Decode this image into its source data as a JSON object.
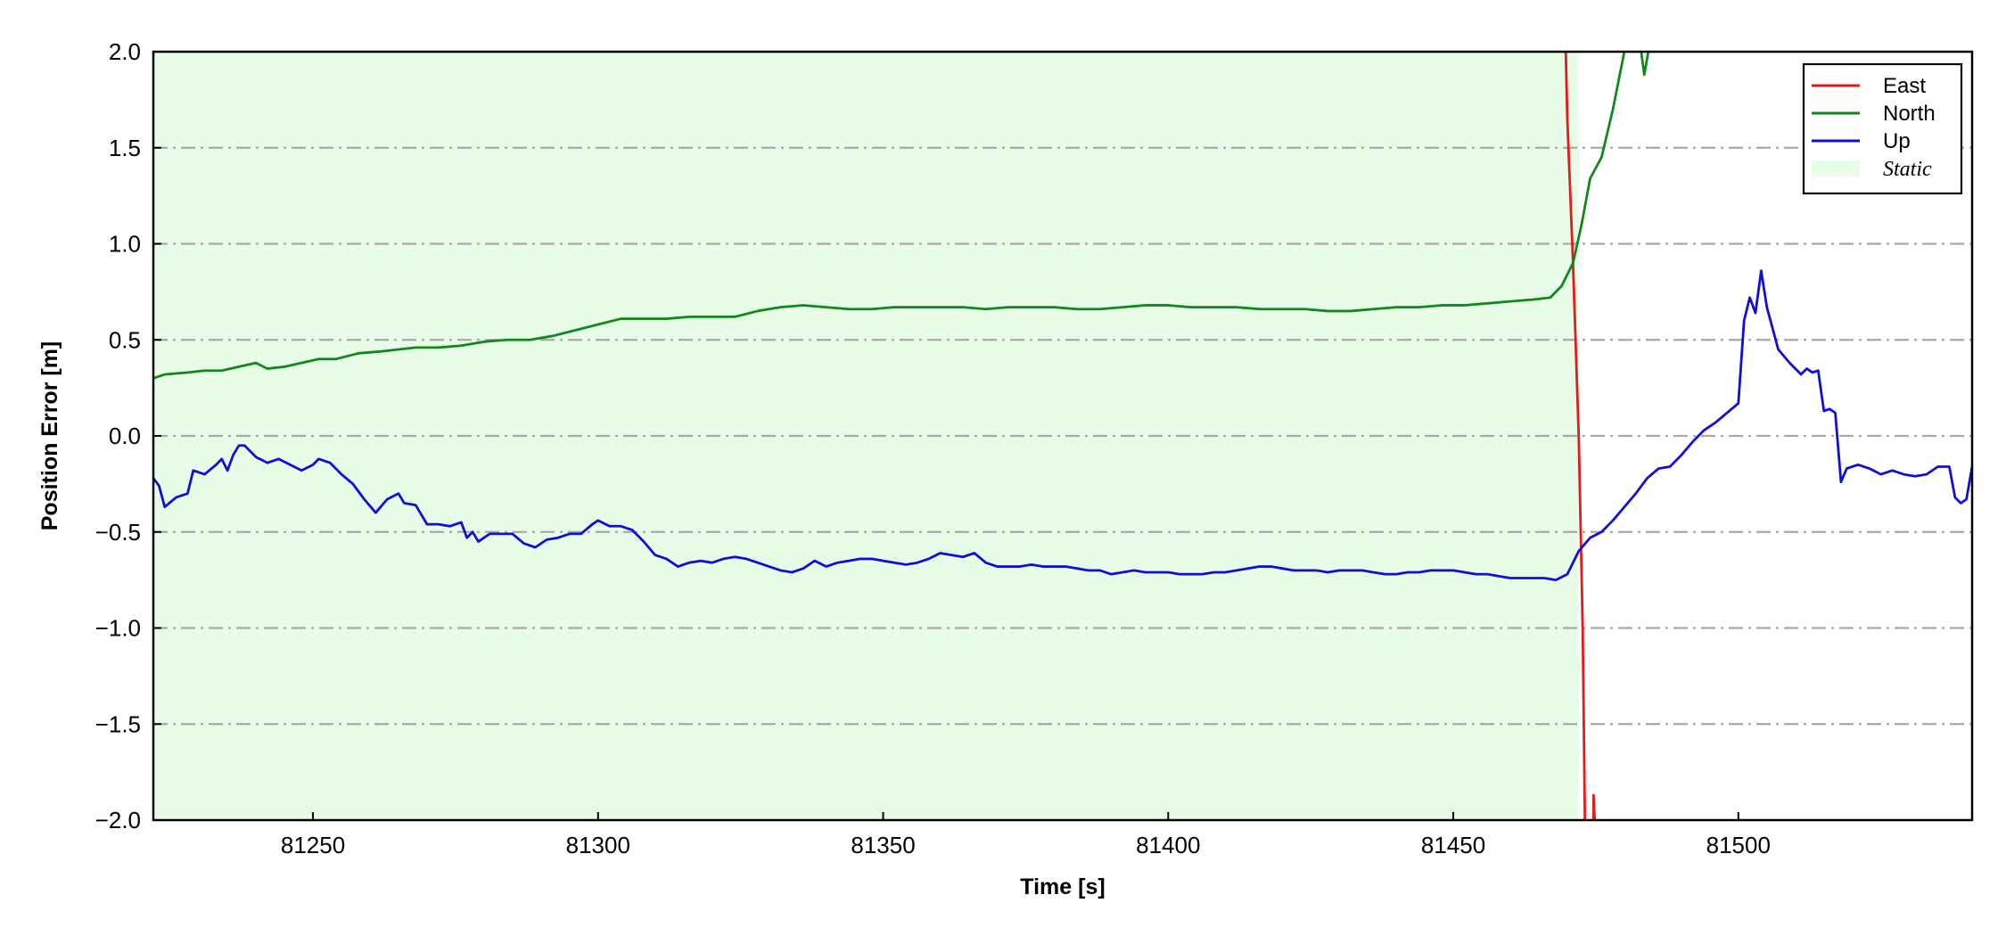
{
  "chart_data": {
    "type": "line",
    "xlabel": "Time [s]",
    "ylabel": "Position Error [m]",
    "xlim": [
      81222,
      81541
    ],
    "ylim": [
      -2.0,
      2.0
    ],
    "x_ticks": [
      81250,
      81300,
      81350,
      81400,
      81450,
      81500
    ],
    "x_tick_labels": [
      "81250",
      "81300",
      "81350",
      "81400",
      "81450",
      "81500"
    ],
    "y_ticks": [
      -2.0,
      -1.5,
      -1.0,
      -0.5,
      0.0,
      0.5,
      1.0,
      1.5,
      2.0
    ],
    "y_tick_labels": [
      "−2.0",
      "−1.5",
      "−1.0",
      "−0.5",
      "0.0",
      "0.5",
      "1.0",
      "1.5",
      "2.0"
    ],
    "grid": "horizontal dash-dot",
    "legend_position": "top-right",
    "shaded_region": {
      "label": "Static",
      "x_start": 81222,
      "x_end": 81472,
      "color": "#e8fde8"
    },
    "series": [
      {
        "name": "East",
        "color": "#e41a1c",
        "points": [
          [
            81469.5,
            2.3
          ],
          [
            81470,
            1.65
          ],
          [
            81471,
            0.9
          ],
          [
            81472,
            0.0
          ],
          [
            81472.7,
            -1.0
          ],
          [
            81473.2,
            -2.3
          ]
        ]
      },
      {
        "name": "North",
        "color": "#11881b",
        "points": [
          [
            81222,
            0.3
          ],
          [
            81224,
            0.32
          ],
          [
            81228,
            0.33
          ],
          [
            81231,
            0.34
          ],
          [
            81234,
            0.34
          ],
          [
            81237,
            0.36
          ],
          [
            81240,
            0.38
          ],
          [
            81242,
            0.35
          ],
          [
            81245,
            0.36
          ],
          [
            81248,
            0.38
          ],
          [
            81251,
            0.4
          ],
          [
            81254,
            0.4
          ],
          [
            81258,
            0.43
          ],
          [
            81262,
            0.44
          ],
          [
            81265,
            0.45
          ],
          [
            81268,
            0.46
          ],
          [
            81272,
            0.46
          ],
          [
            81276,
            0.47
          ],
          [
            81280,
            0.49
          ],
          [
            81284,
            0.5
          ],
          [
            81288,
            0.5
          ],
          [
            81292,
            0.52
          ],
          [
            81296,
            0.55
          ],
          [
            81300,
            0.58
          ],
          [
            81304,
            0.61
          ],
          [
            81308,
            0.61
          ],
          [
            81312,
            0.61
          ],
          [
            81316,
            0.62
          ],
          [
            81320,
            0.62
          ],
          [
            81324,
            0.62
          ],
          [
            81328,
            0.65
          ],
          [
            81332,
            0.67
          ],
          [
            81336,
            0.68
          ],
          [
            81340,
            0.67
          ],
          [
            81344,
            0.66
          ],
          [
            81348,
            0.66
          ],
          [
            81352,
            0.67
          ],
          [
            81356,
            0.67
          ],
          [
            81360,
            0.67
          ],
          [
            81364,
            0.67
          ],
          [
            81368,
            0.66
          ],
          [
            81372,
            0.67
          ],
          [
            81376,
            0.67
          ],
          [
            81380,
            0.67
          ],
          [
            81384,
            0.66
          ],
          [
            81388,
            0.66
          ],
          [
            81392,
            0.67
          ],
          [
            81396,
            0.68
          ],
          [
            81400,
            0.68
          ],
          [
            81404,
            0.67
          ],
          [
            81408,
            0.67
          ],
          [
            81412,
            0.67
          ],
          [
            81416,
            0.66
          ],
          [
            81420,
            0.66
          ],
          [
            81424,
            0.66
          ],
          [
            81428,
            0.65
          ],
          [
            81432,
            0.65
          ],
          [
            81436,
            0.66
          ],
          [
            81440,
            0.67
          ],
          [
            81444,
            0.67
          ],
          [
            81448,
            0.68
          ],
          [
            81452,
            0.68
          ],
          [
            81456,
            0.69
          ],
          [
            81460,
            0.7
          ],
          [
            81464,
            0.71
          ],
          [
            81467,
            0.72
          ],
          [
            81469,
            0.78
          ],
          [
            81471,
            0.9
          ],
          [
            81472.5,
            1.1
          ],
          [
            81474,
            1.34
          ],
          [
            81476,
            1.45
          ],
          [
            81478,
            1.7
          ],
          [
            81480,
            2.0
          ],
          [
            81481.5,
            2.25
          ]
        ],
        "extra_segment": [
          [
            81482.5,
            2.1
          ],
          [
            81483.5,
            1.88
          ],
          [
            81484.5,
            2.05
          ],
          [
            81485.5,
            2.2
          ]
        ]
      },
      {
        "name": "Up",
        "color": "#0f0fd6",
        "points": [
          [
            81222,
            -0.22
          ],
          [
            81223,
            -0.26
          ],
          [
            81224,
            -0.37
          ],
          [
            81226,
            -0.32
          ],
          [
            81228,
            -0.3
          ],
          [
            81229,
            -0.18
          ],
          [
            81231,
            -0.2
          ],
          [
            81233,
            -0.15
          ],
          [
            81234,
            -0.12
          ],
          [
            81235,
            -0.18
          ],
          [
            81236,
            -0.1
          ],
          [
            81237,
            -0.05
          ],
          [
            81238,
            -0.05
          ],
          [
            81240,
            -0.11
          ],
          [
            81242,
            -0.14
          ],
          [
            81244,
            -0.12
          ],
          [
            81246,
            -0.15
          ],
          [
            81248,
            -0.18
          ],
          [
            81250,
            -0.15
          ],
          [
            81251,
            -0.12
          ],
          [
            81253,
            -0.14
          ],
          [
            81255,
            -0.2
          ],
          [
            81257,
            -0.25
          ],
          [
            81259,
            -0.33
          ],
          [
            81261,
            -0.4
          ],
          [
            81263,
            -0.33
          ],
          [
            81265,
            -0.3
          ],
          [
            81266,
            -0.35
          ],
          [
            81268,
            -0.36
          ],
          [
            81270,
            -0.46
          ],
          [
            81272,
            -0.46
          ],
          [
            81274,
            -0.47
          ],
          [
            81276,
            -0.45
          ],
          [
            81277,
            -0.53
          ],
          [
            81278,
            -0.5
          ],
          [
            81279,
            -0.55
          ],
          [
            81281,
            -0.51
          ],
          [
            81283,
            -0.51
          ],
          [
            81285,
            -0.51
          ],
          [
            81287,
            -0.56
          ],
          [
            81289,
            -0.58
          ],
          [
            81291,
            -0.54
          ],
          [
            81293,
            -0.53
          ],
          [
            81295,
            -0.51
          ],
          [
            81297,
            -0.51
          ],
          [
            81299,
            -0.46
          ],
          [
            81300,
            -0.44
          ],
          [
            81302,
            -0.47
          ],
          [
            81304,
            -0.47
          ],
          [
            81306,
            -0.49
          ],
          [
            81308,
            -0.55
          ],
          [
            81310,
            -0.62
          ],
          [
            81312,
            -0.64
          ],
          [
            81314,
            -0.68
          ],
          [
            81316,
            -0.66
          ],
          [
            81318,
            -0.65
          ],
          [
            81320,
            -0.66
          ],
          [
            81322,
            -0.64
          ],
          [
            81324,
            -0.63
          ],
          [
            81326,
            -0.64
          ],
          [
            81328,
            -0.66
          ],
          [
            81330,
            -0.68
          ],
          [
            81332,
            -0.7
          ],
          [
            81334,
            -0.71
          ],
          [
            81336,
            -0.69
          ],
          [
            81338,
            -0.65
          ],
          [
            81340,
            -0.68
          ],
          [
            81342,
            -0.66
          ],
          [
            81344,
            -0.65
          ],
          [
            81346,
            -0.64
          ],
          [
            81348,
            -0.64
          ],
          [
            81350,
            -0.65
          ],
          [
            81352,
            -0.66
          ],
          [
            81354,
            -0.67
          ],
          [
            81356,
            -0.66
          ],
          [
            81358,
            -0.64
          ],
          [
            81360,
            -0.61
          ],
          [
            81362,
            -0.62
          ],
          [
            81364,
            -0.63
          ],
          [
            81366,
            -0.61
          ],
          [
            81368,
            -0.66
          ],
          [
            81370,
            -0.68
          ],
          [
            81372,
            -0.68
          ],
          [
            81374,
            -0.68
          ],
          [
            81376,
            -0.67
          ],
          [
            81378,
            -0.68
          ],
          [
            81380,
            -0.68
          ],
          [
            81382,
            -0.68
          ],
          [
            81384,
            -0.69
          ],
          [
            81386,
            -0.7
          ],
          [
            81388,
            -0.7
          ],
          [
            81390,
            -0.72
          ],
          [
            81392,
            -0.71
          ],
          [
            81394,
            -0.7
          ],
          [
            81396,
            -0.71
          ],
          [
            81398,
            -0.71
          ],
          [
            81400,
            -0.71
          ],
          [
            81402,
            -0.72
          ],
          [
            81404,
            -0.72
          ],
          [
            81406,
            -0.72
          ],
          [
            81408,
            -0.71
          ],
          [
            81410,
            -0.71
          ],
          [
            81412,
            -0.7
          ],
          [
            81414,
            -0.69
          ],
          [
            81416,
            -0.68
          ],
          [
            81418,
            -0.68
          ],
          [
            81420,
            -0.69
          ],
          [
            81422,
            -0.7
          ],
          [
            81424,
            -0.7
          ],
          [
            81426,
            -0.7
          ],
          [
            81428,
            -0.71
          ],
          [
            81430,
            -0.7
          ],
          [
            81432,
            -0.7
          ],
          [
            81434,
            -0.7
          ],
          [
            81436,
            -0.71
          ],
          [
            81438,
            -0.72
          ],
          [
            81440,
            -0.72
          ],
          [
            81442,
            -0.71
          ],
          [
            81444,
            -0.71
          ],
          [
            81446,
            -0.7
          ],
          [
            81448,
            -0.7
          ],
          [
            81450,
            -0.7
          ],
          [
            81452,
            -0.71
          ],
          [
            81454,
            -0.72
          ],
          [
            81456,
            -0.72
          ],
          [
            81458,
            -0.73
          ],
          [
            81460,
            -0.74
          ],
          [
            81462,
            -0.74
          ],
          [
            81464,
            -0.74
          ],
          [
            81466,
            -0.74
          ],
          [
            81468,
            -0.75
          ],
          [
            81470,
            -0.72
          ],
          [
            81472,
            -0.6
          ],
          [
            81474,
            -0.53
          ],
          [
            81476,
            -0.5
          ],
          [
            81478,
            -0.44
          ],
          [
            81480,
            -0.37
          ],
          [
            81482,
            -0.3
          ],
          [
            81484,
            -0.22
          ],
          [
            81486,
            -0.17
          ],
          [
            81488,
            -0.16
          ],
          [
            81490,
            -0.1
          ],
          [
            81492,
            -0.03
          ],
          [
            81494,
            0.03
          ],
          [
            81496,
            0.07
          ],
          [
            81498,
            0.12
          ],
          [
            81500,
            0.17
          ],
          [
            81501,
            0.6
          ],
          [
            81502,
            0.72
          ],
          [
            81503,
            0.64
          ],
          [
            81504,
            0.86
          ],
          [
            81505,
            0.67
          ],
          [
            81507,
            0.45
          ],
          [
            81509,
            0.38
          ],
          [
            81511,
            0.32
          ],
          [
            81512,
            0.35
          ],
          [
            81513,
            0.33
          ],
          [
            81514,
            0.34
          ],
          [
            81515,
            0.13
          ],
          [
            81516,
            0.14
          ],
          [
            81517,
            0.12
          ],
          [
            81518,
            -0.24
          ],
          [
            81519,
            -0.17
          ],
          [
            81521,
            -0.15
          ],
          [
            81523,
            -0.17
          ],
          [
            81525,
            -0.2
          ],
          [
            81527,
            -0.18
          ],
          [
            81529,
            -0.2
          ],
          [
            81531,
            -0.21
          ],
          [
            81533,
            -0.2
          ],
          [
            81535,
            -0.16
          ],
          [
            81537,
            -0.16
          ],
          [
            81538,
            -0.32
          ],
          [
            81539,
            -0.35
          ],
          [
            81540,
            -0.33
          ],
          [
            81541,
            -0.16
          ]
        ]
      }
    ],
    "east_spike": [
      [
        81474.6,
        -2.2
      ],
      [
        81474.6,
        -1.87
      ],
      [
        81475.3,
        -2.3
      ]
    ]
  }
}
